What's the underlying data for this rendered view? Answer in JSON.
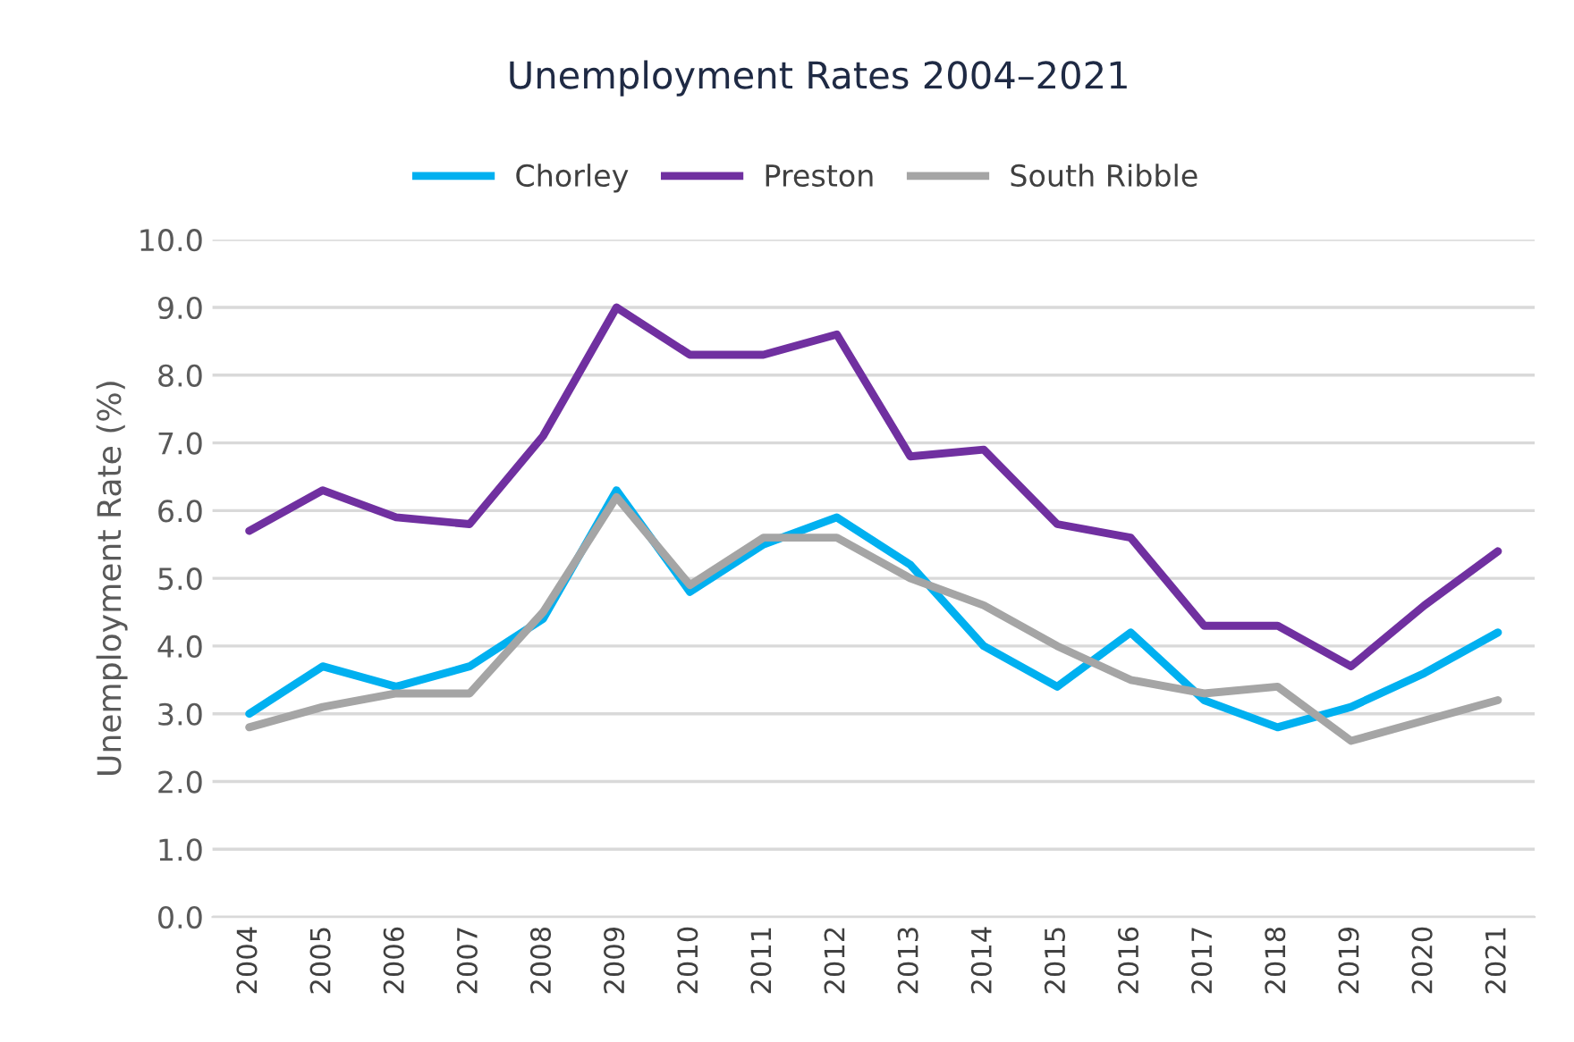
{
  "chart_data": {
    "type": "line",
    "title": "Unemployment Rates 2004–2021",
    "ylabel": "Unemployment Rate (%)",
    "categories": [
      "2004",
      "2005",
      "2006",
      "2007",
      "2008",
      "2009",
      "2010",
      "2011",
      "2012",
      "2013",
      "2014",
      "2015",
      "2016",
      "2017",
      "2018",
      "2019",
      "2020",
      "2021"
    ],
    "series": [
      {
        "name": "Chorley",
        "color": "#00b0f0",
        "values": [
          3.0,
          3.7,
          3.4,
          3.7,
          4.4,
          6.3,
          4.8,
          5.5,
          5.9,
          5.2,
          4.0,
          3.4,
          4.2,
          3.2,
          2.8,
          3.1,
          3.6,
          4.2
        ]
      },
      {
        "name": "Preston",
        "color": "#7030a0",
        "values": [
          5.7,
          6.3,
          5.9,
          5.8,
          7.1,
          9.0,
          8.3,
          8.3,
          8.6,
          6.8,
          6.9,
          5.8,
          5.6,
          4.3,
          4.3,
          3.7,
          4.6,
          5.4
        ]
      },
      {
        "name": "South Ribble",
        "color": "#a5a5a5",
        "values": [
          2.8,
          3.1,
          3.3,
          3.3,
          4.5,
          6.2,
          4.9,
          5.6,
          5.6,
          5.0,
          4.6,
          4.0,
          3.5,
          3.3,
          3.4,
          2.6,
          2.9,
          3.2
        ]
      }
    ],
    "ylim": [
      0,
      10
    ],
    "yticks": [
      {
        "value": 0,
        "label": "0.0"
      },
      {
        "value": 1,
        "label": "1.0"
      },
      {
        "value": 2,
        "label": "2.0"
      },
      {
        "value": 3,
        "label": "3.0"
      },
      {
        "value": 4,
        "label": "4.0"
      },
      {
        "value": 5,
        "label": "5.0"
      },
      {
        "value": 6,
        "label": "6.0"
      },
      {
        "value": 7,
        "label": "7.0"
      },
      {
        "value": 8,
        "label": "8.0"
      },
      {
        "value": 9,
        "label": "9.0"
      },
      {
        "value": 10,
        "label": "10.0"
      }
    ],
    "grid": "y",
    "legend": "top",
    "marker": "none",
    "line_style": "solid"
  }
}
